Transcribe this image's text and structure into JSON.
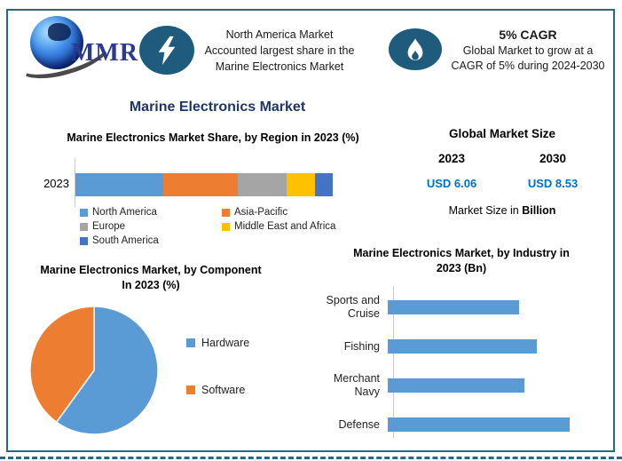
{
  "page": {
    "frame_color": "#2B6784",
    "background": "#ffffff"
  },
  "header": {
    "logo_text": "MMR",
    "highlight": {
      "icon": "lightning-icon",
      "lines": [
        "North America Market",
        "Accounted largest share in the",
        "Marine Electronics Market"
      ]
    },
    "cagr": {
      "icon": "flame-icon",
      "title": "5% CAGR",
      "lines": [
        "Global Market to grow at a",
        "CAGR of 5% during 2024-2030"
      ]
    }
  },
  "main_title": "Marine Electronics Market",
  "market_size": {
    "title": "Global Market Size",
    "years": [
      "2023",
      "2030"
    ],
    "values": [
      "USD 6.06",
      "USD 8.53"
    ],
    "unit_prefix": "Market Size in ",
    "unit_bold": "Billion",
    "value_color": "#0070C0"
  },
  "chart_data": [
    {
      "id": "region_share",
      "type": "bar",
      "subtype": "stacked-horizontal",
      "title": "Marine Electronics Market Share, by Region in 2023 (%)",
      "categories": [
        "2023"
      ],
      "series": [
        {
          "name": "North America",
          "value": 34,
          "color": "#5B9BD5"
        },
        {
          "name": "Asia-Pacific",
          "value": 29,
          "color": "#ED7D31"
        },
        {
          "name": "Europe",
          "value": 19,
          "color": "#A5A5A5"
        },
        {
          "name": "Middle East and Africa",
          "value": 11,
          "color": "#FFC000"
        },
        {
          "name": "South America",
          "value": 7,
          "color": "#4472C4"
        }
      ],
      "xlim": [
        0,
        100
      ],
      "values_estimated_from_pixels": true,
      "legend_position": "bottom"
    },
    {
      "id": "component_split",
      "type": "pie",
      "title": "Marine Electronics Market, by Component In 2023 (%)",
      "labels": [
        "Hardware",
        "Software"
      ],
      "values": [
        60,
        40
      ],
      "colors": [
        "#5B9BD5",
        "#ED7D31"
      ],
      "start_angle_deg": 0,
      "direction": "clockwise",
      "values_estimated_from_pixels": true,
      "legend_position": "right"
    },
    {
      "id": "industry",
      "type": "bar",
      "subtype": "horizontal",
      "title": "Marine Electronics Market, by Industry in 2023 (Bn)",
      "categories": [
        "Sports and Cruise",
        "Fishing",
        "Merchant Navy",
        "Defense"
      ],
      "values_pct_of_max": [
        72,
        82,
        75,
        100
      ],
      "color": "#5B9BD5",
      "axis_value_labels_hidden": true,
      "values_estimated_from_pixels": true
    }
  ]
}
